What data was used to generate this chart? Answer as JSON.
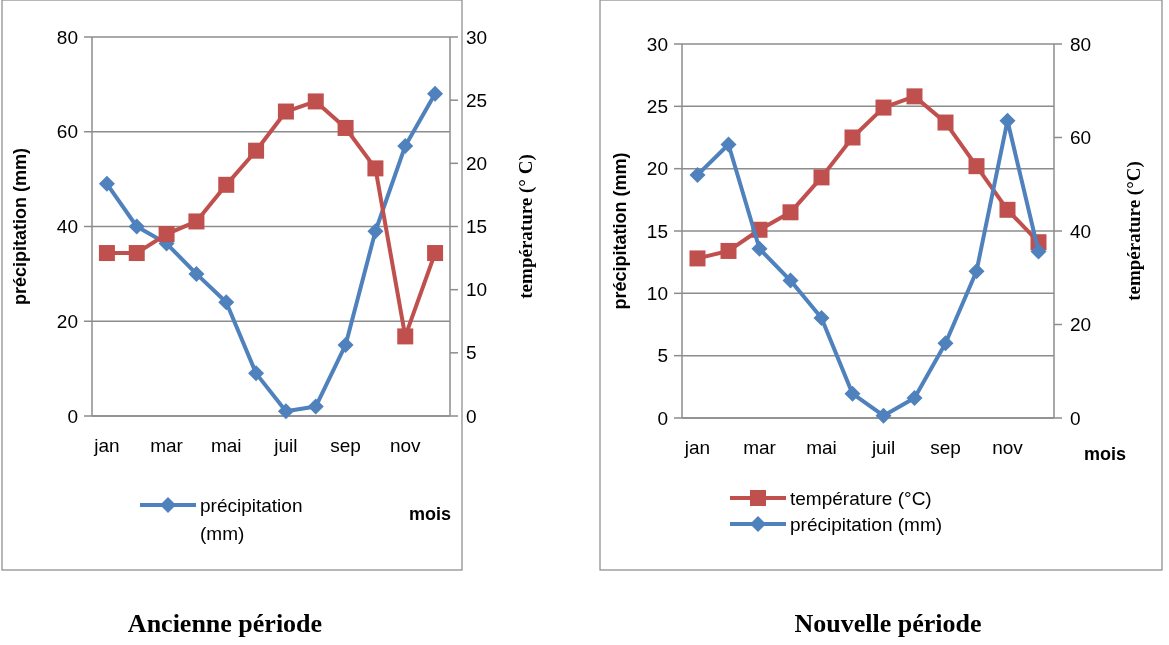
{
  "chart_data": [
    {
      "type": "line",
      "title": "Ancienne période",
      "xlabel": "mois",
      "ylabel": "précipitation (mm)",
      "y2label": "température (° C)",
      "categories": [
        "jan",
        null,
        "mar",
        null,
        "mai",
        null,
        "juil",
        null,
        "sep",
        null,
        "nov",
        null
      ],
      "series": [
        {
          "name": "précipitation (mm)",
          "color": "#4f81bd",
          "marker": "diamond",
          "values": [
            49,
            40,
            36.4,
            30,
            24,
            9,
            1,
            2,
            15,
            39,
            57,
            68
          ]
        },
        {
          "color": "#c0504d",
          "marker": "square",
          "axis": "y2",
          "values": [
            12.9,
            12.9,
            14.4,
            15.4,
            18.3,
            21,
            24.1,
            24.9,
            22.8,
            19.6,
            6.3,
            12.9
          ]
        }
      ],
      "ylim": [
        0,
        80
      ],
      "yticks": [
        0,
        20,
        40,
        60,
        80
      ],
      "y2lim": [
        0,
        30
      ],
      "y2ticks": [
        0,
        5,
        10,
        15,
        20,
        25,
        30
      ],
      "grid": "y",
      "legend": "bottom"
    },
    {
      "type": "line",
      "title": "Nouvelle période",
      "xlabel": "mois",
      "ylabel": "précipitation (mm)",
      "y2label": "température (°C)",
      "categories": [
        "jan",
        null,
        "mar",
        null,
        "mai",
        null,
        "juil",
        null,
        "sep",
        null,
        "nov",
        null
      ],
      "series": [
        {
          "name": "température (°C)",
          "color": "#c0504d",
          "marker": "square",
          "values": [
            12.8,
            13.4,
            15.1,
            16.5,
            19.3,
            22.5,
            24.9,
            25.8,
            23.7,
            20.2,
            16.7,
            14.1
          ]
        },
        {
          "name": "précipitation (mm)",
          "color": "#4f81bd",
          "marker": "diamond",
          "axis": "y2",
          "values": [
            52,
            58.5,
            36.2,
            29.4,
            21.4,
            5.2,
            0.5,
            4.3,
            16,
            31.4,
            63.6,
            35.6
          ]
        }
      ],
      "ylim": [
        0,
        30
      ],
      "yticks": [
        0,
        5,
        10,
        15,
        20,
        25,
        30
      ],
      "y2lim": [
        0,
        80
      ],
      "y2ticks": [
        0,
        20,
        40,
        60,
        80
      ],
      "grid": "y",
      "legend": "bottom"
    }
  ]
}
